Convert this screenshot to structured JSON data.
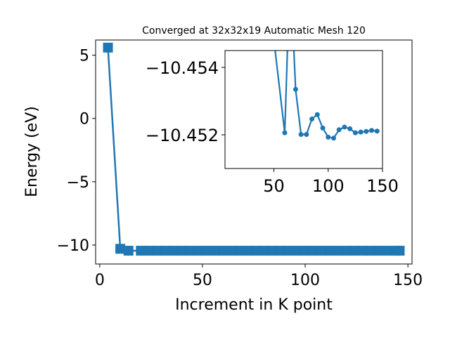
{
  "chart_data": [
    {
      "type": "line",
      "title": "Converged at 32x32x19 Automatic Mesh 120",
      "xlabel": "Increment in K point",
      "ylabel": "Energy (eV)",
      "xlim": [
        -2,
        152
      ],
      "ylim": [
        -11.5,
        6.2
      ],
      "xticks": [
        0,
        50,
        100,
        150
      ],
      "yticks": [
        5,
        0,
        -5,
        -10
      ],
      "xtick_labels": [
        "0",
        "50",
        "100",
        "150"
      ],
      "ytick_labels": [
        "5",
        "0",
        "−5",
        "−10"
      ],
      "grid": false,
      "marker": "square",
      "color": "#1f77b4",
      "series": [
        {
          "x": [
            4,
            10,
            14,
            20,
            24,
            28,
            32,
            36,
            40,
            44,
            48,
            52,
            56,
            60,
            64,
            68,
            72,
            76,
            80,
            84,
            88,
            92,
            96,
            100,
            104,
            108,
            112,
            116,
            120,
            124,
            128,
            132,
            136,
            140,
            144,
            146
          ],
          "y": [
            5.6,
            -10.3,
            -10.45,
            -10.45,
            -10.45,
            -10.45,
            -10.45,
            -10.45,
            -10.45,
            -10.45,
            -10.45,
            -10.45,
            -10.45,
            -10.45,
            -10.45,
            -10.45,
            -10.45,
            -10.45,
            -10.45,
            -10.45,
            -10.45,
            -10.45,
            -10.45,
            -10.45,
            -10.45,
            -10.45,
            -10.45,
            -10.45,
            -10.45,
            -10.45,
            -10.45,
            -10.45,
            -10.45,
            -10.45,
            -10.45,
            -10.45
          ]
        }
      ]
    },
    {
      "type": "line",
      "title": "",
      "xlim": [
        5,
        150
      ],
      "ylim": [
        -10.451,
        -10.4545
      ],
      "xticks": [
        50,
        100,
        150
      ],
      "yticks": [
        -10.454,
        -10.452
      ],
      "xtick_labels": [
        "50",
        "100",
        "150"
      ],
      "ytick_labels": [
        "−10.454",
        "−10.452"
      ],
      "grid": false,
      "marker": "circle",
      "color": "#1f77b4",
      "series": [
        {
          "x": [
            45,
            60,
            65,
            70,
            75,
            80,
            85,
            90,
            95,
            100,
            105,
            110,
            115,
            120,
            125,
            130,
            135,
            140,
            145
          ],
          "y": [
            -10.4562,
            -10.45206,
            -10.457,
            -10.45335,
            -10.45201,
            -10.45201,
            -10.45247,
            -10.4526,
            -10.4522,
            -10.45193,
            -10.4519,
            -10.45215,
            -10.45223,
            -10.45218,
            -10.45206,
            -10.45208,
            -10.4521,
            -10.45213,
            -10.45211
          ]
        }
      ]
    }
  ]
}
